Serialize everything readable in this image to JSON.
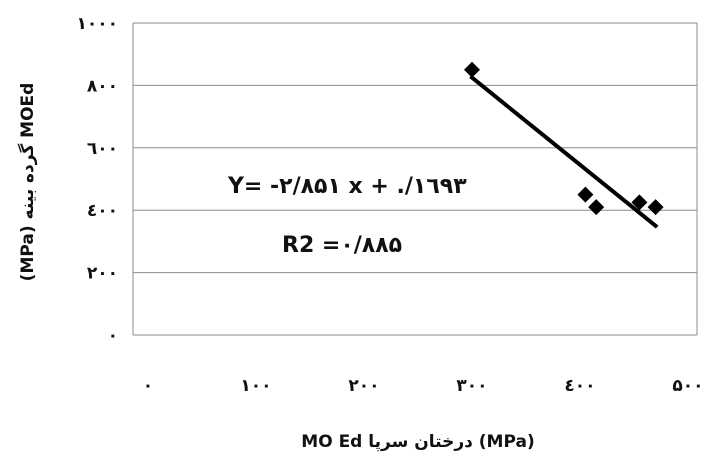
{
  "chart_data": {
    "type": "scatter",
    "x_ticks": [
      "۰",
      "۱۰۰",
      "۲۰۰",
      "۳۰۰",
      "٤۰۰",
      "۵۰۰"
    ],
    "y_ticks": [
      "۰",
      "۲۰۰",
      "٤۰۰",
      "٦۰۰",
      "۸۰۰",
      "۱۰۰۰"
    ],
    "xlim": [
      0,
      500
    ],
    "ylim": [
      0,
      1000
    ],
    "grid": "horizontal",
    "points": [
      {
        "x": 300,
        "y": 850
      },
      {
        "x": 405,
        "y": 450
      },
      {
        "x": 415,
        "y": 410
      },
      {
        "x": 455,
        "y": 425
      },
      {
        "x": 470,
        "y": 410
      }
    ],
    "trendline": {
      "x1": 300,
      "y1": 825,
      "x2": 470,
      "y2": 350
    },
    "equation": "Y= -۲/۸۵۱ x + ./۱٦۹۳",
    "r2": "R2 =۰/۸۸۵",
    "xlabel": "MO Ed درختان سرپا (MPa)",
    "ylabel": "(MPa) گرده بینه MOEd",
    "marker_color": "#000000",
    "line_color": "#000000",
    "grid_color": "#8c8c8c"
  }
}
